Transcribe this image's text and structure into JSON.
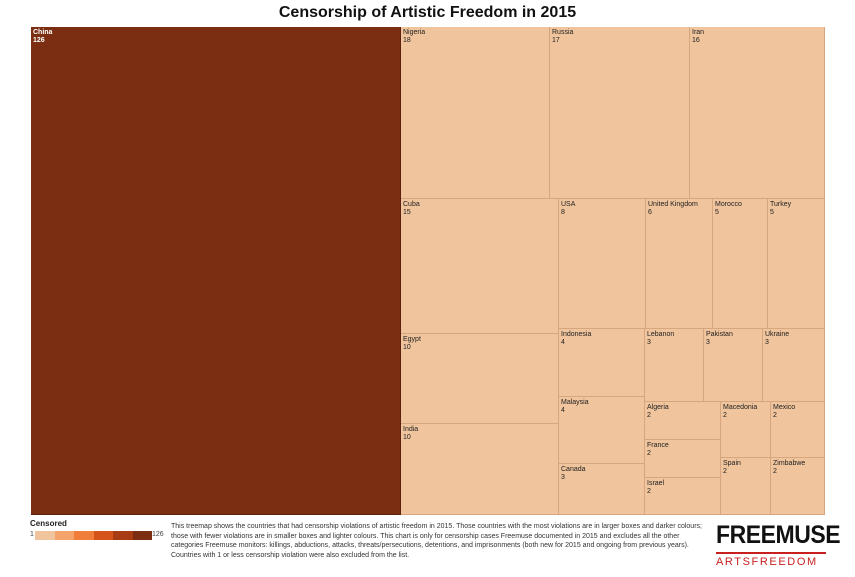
{
  "chart_data": {
    "type": "treemap",
    "title": "Censorship of Artistic Freedom in 2015",
    "items": [
      {
        "name": "China",
        "value": 126
      },
      {
        "name": "Nigeria",
        "value": 18
      },
      {
        "name": "Russia",
        "value": 17
      },
      {
        "name": "Iran",
        "value": 16
      },
      {
        "name": "Cuba",
        "value": 15
      },
      {
        "name": "Egypt",
        "value": 10
      },
      {
        "name": "India",
        "value": 10
      },
      {
        "name": "USA",
        "value": 8
      },
      {
        "name": "United Kingdom",
        "value": 6
      },
      {
        "name": "Morocco",
        "value": 5
      },
      {
        "name": "Turkey",
        "value": 5
      },
      {
        "name": "Indonesia",
        "value": 4
      },
      {
        "name": "Malaysia",
        "value": 4
      },
      {
        "name": "Lebanon",
        "value": 3
      },
      {
        "name": "Pakistan",
        "value": 3
      },
      {
        "name": "Ukraine",
        "value": 3
      },
      {
        "name": "Canada",
        "value": 3
      },
      {
        "name": "Algeria",
        "value": 2
      },
      {
        "name": "Macedonia",
        "value": 2
      },
      {
        "name": "Mexico",
        "value": 2
      },
      {
        "name": "France",
        "value": 2
      },
      {
        "name": "Spain",
        "value": 2
      },
      {
        "name": "Zimbabwe",
        "value": 2
      },
      {
        "name": "Israel",
        "value": 2
      }
    ],
    "legend": {
      "title": "Censored",
      "min": "1",
      "max": "126",
      "colors": [
        "#f0c49c",
        "#f4a46a",
        "#f07d3a",
        "#d4541c",
        "#a83c14",
        "#7b2e12"
      ]
    }
  },
  "description": "This treemap shows the countries that had censorship violations of artistic freedom in 2015. Those countries with the most violations are in larger boxes and darker colours; those with fewer violations are in smaller boxes and lighter colours. This chart is only for censorship cases Freemuse documented in 2015 and excludes all the other categories Freemuse monitors: killings, abductions, attacks, threats/persecutions, detentions, and imprisonments (both new for 2015 and ongoing from previous years). Countries with 1 or less censorship violation were also excluded from the list.",
  "brand": {
    "name": "FREEMUSE",
    "tagline": "ARTSFREEDOM"
  },
  "colors": {
    "high": "#7b2e12",
    "low": "#f0c49c",
    "brand_red": "#c8201e"
  }
}
